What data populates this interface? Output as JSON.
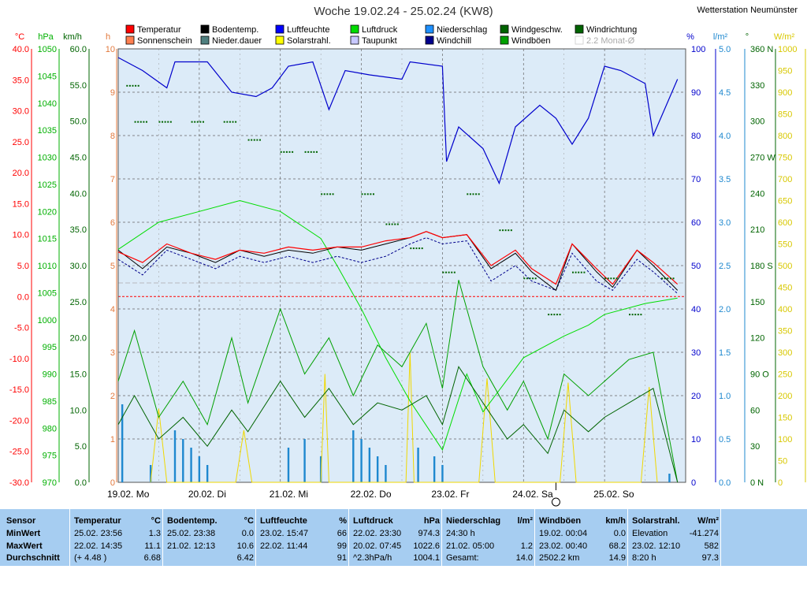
{
  "title": "Woche 19.02.24 - 25.02.24 (KW8)",
  "station": "Wetterstation Neumünster",
  "legend": [
    {
      "label": "Temperatur",
      "color": "#ff0000"
    },
    {
      "label": "Bodentemp.",
      "color": "#000000"
    },
    {
      "label": "Luftfeuchte",
      "color": "#0000ff"
    },
    {
      "label": "Luftdruck",
      "color": "#00dd00"
    },
    {
      "label": "Niederschlag",
      "color": "#1e90ff"
    },
    {
      "label": "Windgeschw.",
      "color": "#006400"
    },
    {
      "label": "Windrichtung",
      "color": "#006400"
    },
    {
      "label": "Sonnenschein",
      "color": "#ff7f50"
    },
    {
      "label": "Nieder.dauer",
      "color": "#4f7f7f"
    },
    {
      "label": "Solarstrahl.",
      "color": "#ffff00"
    },
    {
      "label": "Taupunkt",
      "color": "#c8c8ff"
    },
    {
      "label": "Windchill",
      "color": "#00008b"
    },
    {
      "label": "Windböen",
      "color": "#00a000"
    },
    {
      "label": "2.2 Monat-Ø",
      "color": "#ffffff"
    }
  ],
  "axes": {
    "temp_unit": "°C",
    "hpa_unit": "hPa",
    "kmh_unit": "km/h",
    "h_unit": "h",
    "pct_unit": "%",
    "lm2_unit": "l/m²",
    "deg_unit": "°",
    "wm2_unit": "W/m²",
    "temp_ticks": [
      "40.0",
      "35.0",
      "30.0",
      "25.0",
      "20.0",
      "15.0",
      "10.0",
      "5.0",
      "0.0",
      "-5.0",
      "-10.0",
      "-15.0",
      "-20.0",
      "-25.0",
      "-30.0"
    ],
    "hpa_ticks": [
      "1050",
      "1045",
      "1040",
      "1035",
      "1030",
      "1025",
      "1020",
      "1015",
      "1010",
      "1005",
      "1000",
      "995",
      "990",
      "985",
      "980",
      "975",
      "970"
    ],
    "kmh_ticks": [
      "60.0",
      "55.0",
      "50.0",
      "45.0",
      "40.0",
      "35.0",
      "30.0",
      "25.0",
      "20.0",
      "15.0",
      "10.0",
      "5.0",
      "0.0"
    ],
    "h_ticks": [
      "10",
      "9",
      "8",
      "7",
      "6",
      "5",
      "4",
      "3",
      "2",
      "1",
      "0"
    ],
    "pct_ticks": [
      "100",
      "90",
      "80",
      "70",
      "60",
      "50",
      "40",
      "30",
      "20",
      "10",
      "0"
    ],
    "lm2_ticks": [
      "5.0",
      "4.5",
      "4.0",
      "3.5",
      "3.0",
      "2.5",
      "2.0",
      "1.5",
      "1.0",
      "0.5",
      "0.0"
    ],
    "deg_ticks": [
      "360 N",
      "330",
      "300",
      "270 W",
      "240",
      "210",
      "180 S",
      "150",
      "120",
      "90 O",
      "60",
      "30",
      "0 N"
    ],
    "wm2_ticks": [
      "1000",
      "950",
      "900",
      "850",
      "800",
      "750",
      "700",
      "650",
      "600",
      "550",
      "500",
      "450",
      "400",
      "350",
      "300",
      "250",
      "200",
      "150",
      "100",
      "50",
      "0"
    ],
    "day_labels": [
      "19.02.  Mo",
      "20.02.  Di",
      "21.02.  Mi",
      "22.02.  Do",
      "23.02.  Fr",
      "24.02.  Sa",
      "25.02.  So"
    ]
  },
  "chart_data": {
    "type": "line",
    "title": "Woche 19.02.24 - 25.02.24 (KW8)",
    "x_range": [
      "19.02.24 00:00",
      "25.02.24 24:00"
    ],
    "temp_ylim": [
      -30,
      40
    ],
    "pressure_ylim": [
      970,
      1050
    ],
    "humidity_ylim": [
      0,
      100
    ],
    "wind_ylim": [
      0,
      60
    ],
    "series": [
      {
        "name": "Temperatur",
        "unit": "°C",
        "x_days": [
          0,
          0.3,
          0.6,
          0.9,
          1.2,
          1.5,
          1.8,
          2.1,
          2.4,
          2.7,
          3.0,
          3.3,
          3.6,
          3.8,
          4.0,
          4.3,
          4.6,
          4.9,
          5.1,
          5.4,
          5.6,
          5.9,
          6.1,
          6.4,
          6.6,
          6.9
        ],
        "values": [
          7.2,
          5.5,
          8.5,
          7.0,
          6.0,
          7.5,
          7.0,
          8.0,
          7.5,
          8.0,
          8.0,
          9.0,
          9.5,
          10.5,
          9.5,
          10.0,
          5.0,
          7.5,
          4.5,
          2.0,
          8.5,
          4.5,
          2.0,
          7.5,
          5.5,
          2.0
        ]
      },
      {
        "name": "Bodentemp.",
        "unit": "°C",
        "x_days": [
          0,
          0.3,
          0.6,
          0.9,
          1.2,
          1.5,
          1.8,
          2.1,
          2.4,
          2.7,
          3.0,
          3.3,
          3.6,
          3.8,
          4.0,
          4.3,
          4.6,
          4.9,
          5.1,
          5.4,
          5.6,
          5.9,
          6.1,
          6.4,
          6.6,
          6.9
        ],
        "values": [
          7.5,
          4.5,
          8.0,
          7.0,
          5.5,
          7.5,
          6.5,
          7.5,
          7.0,
          8.0,
          7.5,
          8.5,
          9.5,
          10.5,
          9.5,
          10.0,
          4.5,
          7.0,
          4.0,
          1.0,
          8.5,
          4.0,
          1.5,
          7.5,
          5.0,
          1.0
        ]
      },
      {
        "name": "Taupunkt",
        "unit": "°C",
        "x_days": [
          0,
          0.3,
          0.6,
          0.9,
          1.2,
          1.5,
          1.8,
          2.1,
          2.4,
          2.7,
          3.0,
          3.3,
          3.6,
          3.8,
          4.0,
          4.3,
          4.6,
          4.9,
          5.1,
          5.4,
          5.6,
          5.9,
          6.1,
          6.4,
          6.6,
          6.9
        ],
        "values": [
          6.0,
          3.5,
          7.5,
          6.0,
          4.5,
          6.5,
          5.5,
          6.5,
          5.5,
          6.5,
          5.5,
          6.5,
          8.5,
          9.5,
          8.5,
          9.0,
          2.5,
          5.0,
          2.5,
          1.0,
          7.0,
          2.5,
          1.0,
          6.0,
          4.0,
          0.5
        ]
      },
      {
        "name": "Luftfeuchte",
        "unit": "%",
        "x_days": [
          0,
          0.3,
          0.6,
          0.7,
          1.1,
          1.4,
          1.7,
          1.9,
          2.1,
          2.4,
          2.6,
          2.8,
          3.1,
          3.5,
          3.6,
          4.0,
          4.05,
          4.2,
          4.5,
          4.7,
          4.9,
          5.2,
          5.4,
          5.6,
          5.8,
          6.0,
          6.2,
          6.5,
          6.6,
          6.9
        ],
        "values": [
          98,
          95,
          91,
          97,
          97,
          90,
          89,
          91,
          96,
          97,
          86,
          95,
          94,
          93,
          97,
          96,
          74,
          82,
          77,
          69,
          82,
          87,
          84,
          78,
          84,
          96,
          95,
          92,
          80,
          93
        ]
      },
      {
        "name": "Luftdruck",
        "unit": "hPa",
        "x_days": [
          0,
          0.5,
          1.0,
          1.5,
          2.0,
          2.5,
          2.7,
          3.0,
          3.3,
          3.6,
          4.0,
          4.3,
          4.5,
          5.0,
          5.5,
          5.8,
          6.0,
          6.5,
          6.9
        ],
        "values": [
          1013,
          1018,
          1020,
          1022,
          1020,
          1015,
          1010,
          1002,
          993,
          985,
          976,
          990,
          983,
          993,
          997,
          999,
          1001,
          1003,
          1004
        ]
      },
      {
        "name": "Windgeschw.",
        "unit": "km/h",
        "x_days": [
          0,
          0.2,
          0.5,
          0.8,
          1.1,
          1.4,
          1.6,
          2.0,
          2.3,
          2.6,
          2.9,
          3.2,
          3.5,
          3.8,
          4.0,
          4.2,
          4.5,
          4.8,
          5.0,
          5.3,
          5.5,
          5.8,
          6.0,
          6.3,
          6.6,
          6.9
        ],
        "values": [
          8,
          12,
          6,
          9,
          5,
          10,
          7,
          14,
          9,
          13,
          8,
          11,
          10,
          12,
          8,
          16,
          11,
          6,
          8,
          4,
          10,
          7,
          9,
          11,
          13,
          0
        ]
      },
      {
        "name": "Windböen",
        "unit": "km/h",
        "x_days": [
          0,
          0.2,
          0.5,
          0.8,
          1.1,
          1.4,
          1.6,
          2.0,
          2.3,
          2.6,
          2.9,
          3.2,
          3.5,
          3.8,
          4.0,
          4.2,
          4.5,
          4.8,
          5.0,
          5.3,
          5.5,
          5.8,
          6.0,
          6.3,
          6.6,
          6.9
        ],
        "values": [
          14,
          21,
          9,
          14,
          8,
          20,
          11,
          24,
          15,
          20,
          12,
          19,
          16,
          22,
          13,
          28,
          16,
          10,
          14,
          6,
          15,
          12,
          14,
          17,
          18,
          0
        ]
      },
      {
        "name": "Solarstrahl.",
        "unit": "W/m²",
        "x_days": [
          0.4,
          0.5,
          0.6,
          1.45,
          1.55,
          1.65,
          2.5,
          2.55,
          2.6,
          3.55,
          3.6,
          3.65,
          4.45,
          4.55,
          4.65,
          5.45,
          5.55,
          5.65,
          6.45,
          6.55,
          6.65
        ],
        "values": [
          0,
          170,
          0,
          0,
          120,
          0,
          0,
          250,
          0,
          0,
          300,
          0,
          0,
          240,
          0,
          0,
          230,
          0,
          0,
          220,
          0
        ]
      },
      {
        "name": "Niederschlag",
        "unit": "l/m²",
        "x_days": [
          0.05,
          0.4,
          0.7,
          0.8,
          0.9,
          1.0,
          1.1,
          2.1,
          2.3,
          2.5,
          2.9,
          3.0,
          3.1,
          3.2,
          3.3,
          3.7,
          3.9,
          4.0,
          6.8
        ],
        "values": [
          0.9,
          0.2,
          0.6,
          0.5,
          0.4,
          0.3,
          0.2,
          0.4,
          0.5,
          0.3,
          0.6,
          0.5,
          0.4,
          0.3,
          0.2,
          0.4,
          0.3,
          0.2,
          0.1
        ]
      }
    ],
    "grid": true
  },
  "stats": {
    "row_labels": [
      "Sensor",
      "MinWert",
      "MaxWert",
      "Durchschnitt"
    ],
    "cols": [
      {
        "name": "Temperatur",
        "unit": "°C",
        "rows": [
          [
            "25.02.  23:56",
            "1.3"
          ],
          [
            "22.02.  14:35",
            "11.1"
          ],
          [
            "(+ 4.48 )",
            "6.68"
          ]
        ]
      },
      {
        "name": "Bodentemp.",
        "unit": "°C",
        "rows": [
          [
            "25.02.  23:38",
            "0.0"
          ],
          [
            "21.02.  12:13",
            "10.6"
          ],
          [
            "",
            "6.42"
          ]
        ]
      },
      {
        "name": "Luftfeuchte",
        "unit": "%",
        "rows": [
          [
            "23.02.  15:47",
            "66"
          ],
          [
            "22.02.  11:44",
            "99"
          ],
          [
            "",
            "91"
          ]
        ]
      },
      {
        "name": "Luftdruck",
        "unit": "hPa",
        "rows": [
          [
            "22.02.  23:30",
            "974.3"
          ],
          [
            "20.02.  07:45",
            "1022.6"
          ],
          [
            "^2.3hPa/h",
            "1004.1"
          ]
        ]
      },
      {
        "name": "Niederschlag",
        "unit": "l/m²",
        "rows": [
          [
            "24:30 h",
            ""
          ],
          [
            "21.02.  05:00",
            "1.2"
          ],
          [
            "Gesamt:",
            "14.0"
          ]
        ]
      },
      {
        "name": "Windböen",
        "unit": "km/h",
        "rows": [
          [
            "19.02.  00:04",
            "0.0"
          ],
          [
            "23.02.  00:40",
            "68.2"
          ],
          [
            "2502.2 km",
            "14.9"
          ]
        ]
      },
      {
        "name": "Solarstrahl.",
        "unit": "W/m²",
        "rows": [
          [
            "Elevation",
            "-41.274"
          ],
          [
            "23.02.  12:10",
            "582"
          ],
          [
            "8:20 h",
            "97.3"
          ]
        ]
      }
    ]
  }
}
